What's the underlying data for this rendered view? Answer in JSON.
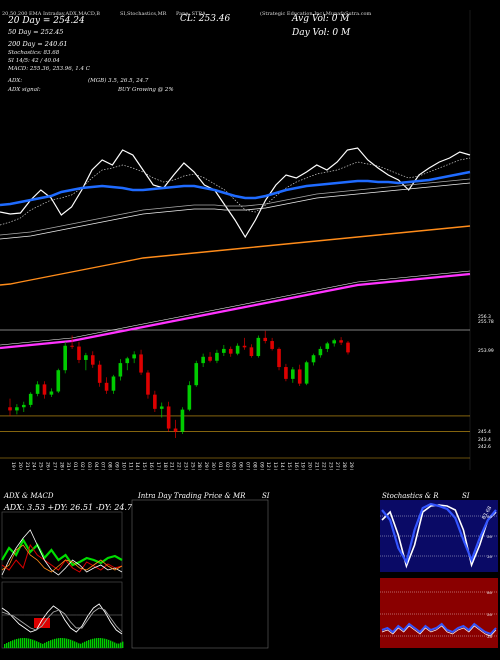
{
  "header": {
    "left": "20,50,200 EMA Intraday,ADX,MACD,B",
    "mid": "SI,Stochastics,MR",
    "mid2": "Pane: STRA",
    "right": "(Strategic Education Inc) MunafaSutra.com"
  },
  "info": {
    "ema20": "20  Day = 254.24",
    "ema50": "50  Day = 252.45",
    "ema200": "200  Day = 240.61",
    "stoch": "Stochastics: 83.68",
    "si": "SI 14/5: 42 / 40.04",
    "macd": "MACD: 255.36, 253.96,  1.4  C",
    "adx": "ADX:",
    "adx_val": "(MGB) 3.5,  26.5,  24.7",
    "adx_signal": "ADX  signal:",
    "adx_signal_val": "BUY Growing @ 2%",
    "close": "CL: 253.46",
    "vol": "Avg Vol: 0  M",
    "dayvol": "Day Vol: 0   M"
  },
  "price_labels": [
    "256.3",
    "255.78",
    "253.99",
    "245.4",
    "243.4",
    "242.6"
  ],
  "x_labels": [
    "19 Oct",
    "20 Oct",
    "21 Oct",
    "24 Oct",
    "25 Oct",
    "26 Oct",
    "27 Oct",
    "28 Oct",
    "31 Oct",
    "01 Nov",
    "02 Nov",
    "03 Nov",
    "04 Nov",
    "07 Nov",
    "08 Nov",
    "09 Nov",
    "10 Nov",
    "11 Nov",
    "14 Nov",
    "15 Nov",
    "16 Nov",
    "17 Nov",
    "18 Nov",
    "21 Nov",
    "22 Nov",
    "23 Nov",
    "25 Nov",
    "28 Nov",
    "29 Nov",
    "30 Nov",
    "01 Dec",
    "02 Dec",
    "05 Dec",
    "06 Dec",
    "07 Dec",
    "08 Dec",
    "09 Dec",
    "12 Dec",
    "13 Dec",
    "14 Dec",
    "15 Dec",
    "16 Dec",
    "19 Dec",
    "20 Dec",
    "21 Dec",
    "22 Dec",
    "23 Dec",
    "27 Dec",
    "28 Dec",
    "29 Dec"
  ],
  "panels": {
    "adx_title": "ADX  & MACD",
    "adx_text": "ADX: 3.53  +DY: 26.51  -DY: 24.7",
    "mr_title": "Intra  Day Trading Price  & MR",
    "si_title": "SI",
    "stoch_title": "Stochastics & R",
    "stoch_si": "SI",
    "stoch_labels": [
      "80",
      "50",
      "20"
    ],
    "stoch_value": "83.68",
    "rsi_labels": [
      "80",
      "50",
      "20"
    ]
  },
  "chart_data": {
    "type": "candlestick",
    "candles": [
      [
        246.5,
        247.6,
        245.4,
        246.1
      ],
      [
        246.1,
        246.9,
        245.6,
        246.5
      ],
      [
        246.5,
        247.2,
        245.9,
        246.8
      ],
      [
        246.8,
        248.4,
        246.5,
        248.2
      ],
      [
        248.2,
        249.8,
        247.9,
        249.4
      ],
      [
        249.4,
        249.8,
        247.6,
        248.1
      ],
      [
        248.1,
        248.9,
        247.8,
        248.5
      ],
      [
        248.5,
        251.4,
        248.3,
        251.2
      ],
      [
        251.2,
        254.8,
        250.8,
        254.3
      ],
      [
        254.3,
        255.6,
        253.9,
        254.2
      ],
      [
        254.2,
        254.8,
        252.1,
        252.5
      ],
      [
        252.5,
        253.4,
        251.2,
        253.1
      ],
      [
        253.1,
        253.6,
        251.5,
        251.9
      ],
      [
        251.9,
        252.4,
        249.1,
        249.6
      ],
      [
        249.6,
        250.3,
        248.2,
        248.6
      ],
      [
        248.6,
        250.6,
        248.2,
        250.4
      ],
      [
        250.4,
        252.6,
        249.9,
        252.1
      ],
      [
        252.1,
        252.9,
        251.2,
        252.7
      ],
      [
        252.7,
        253.6,
        252.1,
        253.2
      ],
      [
        253.2,
        253.8,
        250.6,
        250.9
      ],
      [
        250.9,
        251.2,
        247.6,
        248.1
      ],
      [
        248.1,
        248.6,
        245.9,
        246.3
      ],
      [
        246.3,
        247.1,
        245.2,
        246.6
      ],
      [
        246.6,
        247.2,
        243.4,
        243.8
      ],
      [
        243.8,
        244.9,
        242.6,
        243.4
      ],
      [
        243.4,
        246.5,
        243.1,
        246.2
      ],
      [
        246.2,
        249.8,
        246.0,
        249.3
      ],
      [
        249.3,
        252.4,
        249.1,
        252.1
      ],
      [
        252.1,
        253.3,
        251.6,
        252.9
      ],
      [
        252.9,
        253.5,
        252.2,
        252.4
      ],
      [
        252.4,
        253.8,
        252.1,
        253.4
      ],
      [
        253.4,
        254.4,
        253.0,
        253.9
      ],
      [
        253.9,
        254.2,
        252.9,
        253.3
      ],
      [
        253.3,
        254.6,
        253.1,
        254.3
      ],
      [
        254.3,
        255.3,
        253.8,
        254.1
      ],
      [
        254.1,
        254.5,
        252.8,
        253.0
      ],
      [
        253.0,
        255.6,
        252.8,
        255.3
      ],
      [
        255.3,
        256.2,
        254.6,
        254.9
      ],
      [
        254.9,
        255.3,
        253.7,
        253.9
      ],
      [
        253.9,
        254.1,
        251.2,
        251.6
      ],
      [
        251.6,
        252.0,
        249.8,
        250.1
      ],
      [
        250.1,
        251.6,
        249.6,
        251.3
      ],
      [
        251.3,
        251.9,
        249.2,
        249.5
      ],
      [
        249.5,
        252.4,
        249.3,
        252.2
      ],
      [
        252.2,
        253.3,
        251.8,
        253.1
      ],
      [
        253.1,
        254.2,
        252.8,
        253.9
      ],
      [
        253.9,
        254.8,
        253.5,
        254.6
      ],
      [
        254.6,
        255.2,
        254.2,
        255.0
      ],
      [
        255.0,
        255.4,
        254.4,
        254.7
      ],
      [
        254.7,
        254.9,
        253.2,
        253.46
      ]
    ]
  },
  "colors": {
    "up": "#00cc00",
    "down": "#dd0000",
    "ema20": "#ffffff",
    "ema50": "#1f6bff",
    "ema200": "#ff8c1a",
    "magenta": "#ff33ff",
    "stoch_bg": "#0a0a66",
    "rsi_bg": "#8a0000"
  }
}
